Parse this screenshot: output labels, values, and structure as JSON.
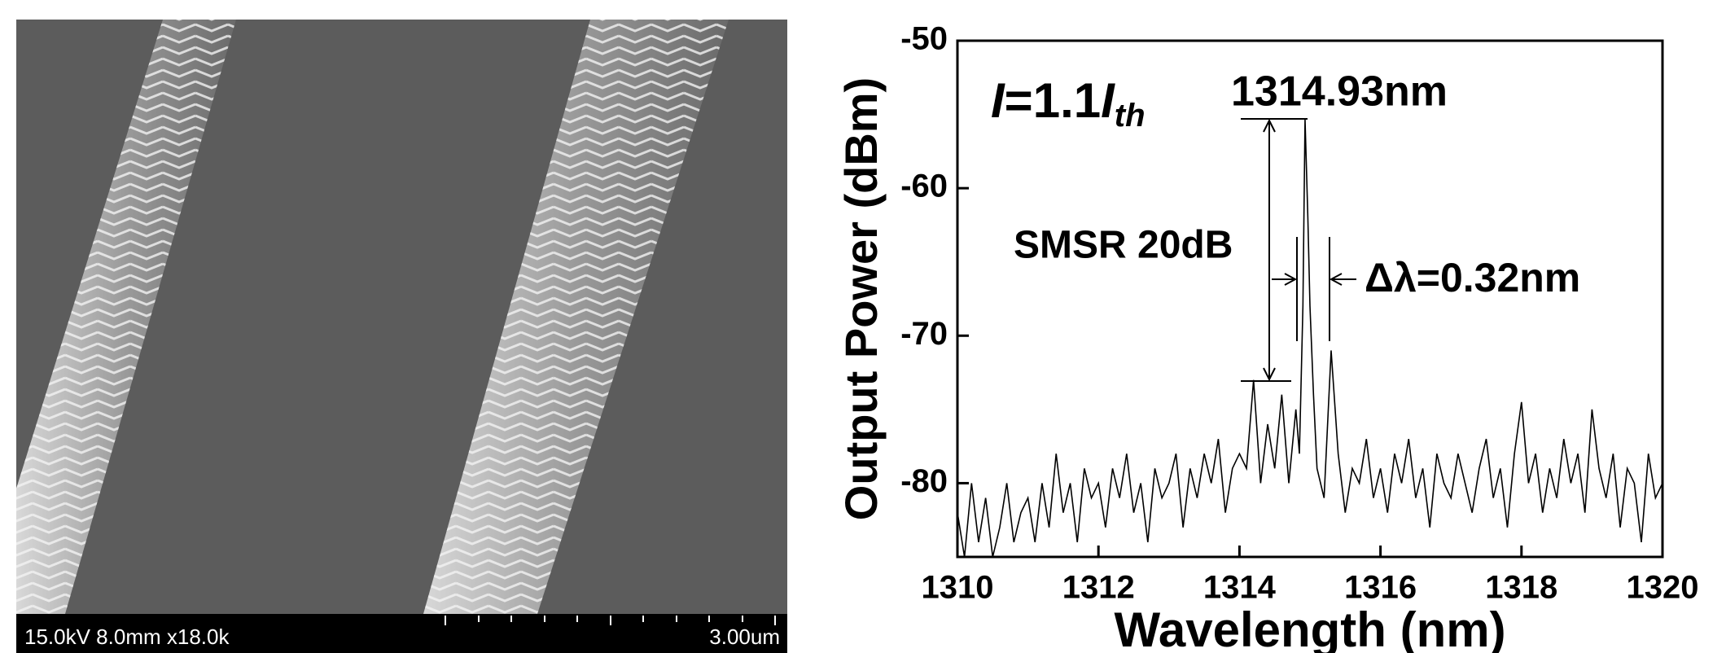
{
  "sem_image": {
    "caption": "15.0kV 8.0mm x18.0k",
    "scale_label": "3.00um"
  },
  "chart_data": {
    "type": "line",
    "xlabel": "Wavelength (nm)",
    "ylabel": "Output Power (dBm)",
    "annotations": {
      "current": [
        "I",
        "=1.1",
        "I",
        "th"
      ],
      "peak": "1314.93nm",
      "smsr": "SMSR 20dB",
      "linewidth": "Δλ=0.32nm"
    },
    "xlim": [
      1310,
      1320
    ],
    "xticks": [
      1310,
      1312,
      1314,
      1316,
      1318,
      1320
    ],
    "ylim": [
      -85,
      -50
    ],
    "yticks": [
      -80,
      -70,
      -60,
      -50
    ],
    "x": [
      1310.0,
      1310.1,
      1310.2,
      1310.3,
      1310.4,
      1310.5,
      1310.6,
      1310.7,
      1310.8,
      1310.9,
      1311.0,
      1311.1,
      1311.2,
      1311.3,
      1311.4,
      1311.5,
      1311.6,
      1311.7,
      1311.8,
      1311.9,
      1312.0,
      1312.1,
      1312.2,
      1312.3,
      1312.4,
      1312.5,
      1312.6,
      1312.7,
      1312.8,
      1312.9,
      1313.0,
      1313.1,
      1313.2,
      1313.3,
      1313.4,
      1313.5,
      1313.6,
      1313.7,
      1313.8,
      1313.9,
      1314.0,
      1314.1,
      1314.2,
      1314.3,
      1314.4,
      1314.5,
      1314.6,
      1314.7,
      1314.8,
      1314.85,
      1314.9,
      1314.93,
      1314.97,
      1315.0,
      1315.05,
      1315.1,
      1315.2,
      1315.3,
      1315.4,
      1315.5,
      1315.6,
      1315.7,
      1315.8,
      1315.9,
      1316.0,
      1316.1,
      1316.2,
      1316.3,
      1316.4,
      1316.5,
      1316.6,
      1316.7,
      1316.8,
      1316.9,
      1317.0,
      1317.1,
      1317.2,
      1317.3,
      1317.4,
      1317.5,
      1317.6,
      1317.7,
      1317.8,
      1317.9,
      1318.0,
      1318.1,
      1318.2,
      1318.3,
      1318.4,
      1318.5,
      1318.6,
      1318.7,
      1318.8,
      1318.9,
      1319.0,
      1319.1,
      1319.2,
      1319.3,
      1319.4,
      1319.5,
      1319.6,
      1319.7,
      1319.8,
      1319.9,
      1320.0
    ],
    "series": [
      {
        "color": "#000000",
        "values": [
          -82,
          -85,
          -80,
          -84,
          -81,
          -85,
          -83,
          -80,
          -84,
          -82,
          -81,
          -84,
          -80,
          -83,
          -78,
          -82,
          -80,
          -84,
          -79,
          -81,
          -80,
          -83,
          -79,
          -81,
          -78,
          -82,
          -80,
          -84,
          -79,
          -81,
          -80,
          -78,
          -83,
          -79,
          -81,
          -78,
          -80,
          -77,
          -82,
          -79,
          -78,
          -79,
          -73,
          -80,
          -76,
          -79,
          -74,
          -80,
          -75,
          -78,
          -68,
          -55.3,
          -62,
          -68,
          -74,
          -79,
          -81,
          -71,
          -78,
          -82,
          -79,
          -80,
          -77,
          -81,
          -79,
          -82,
          -78,
          -80,
          -77,
          -81,
          -79,
          -83,
          -78,
          -80,
          -81,
          -78,
          -80,
          -82,
          -79,
          -77,
          -81,
          -79,
          -83,
          -78,
          -74.5,
          -80,
          -78,
          -82,
          -79,
          -81,
          -77,
          -80,
          -78,
          -82,
          -75,
          -79,
          -81,
          -78,
          -83,
          -79,
          -80,
          -84,
          -78,
          -81,
          -80
        ]
      }
    ]
  }
}
